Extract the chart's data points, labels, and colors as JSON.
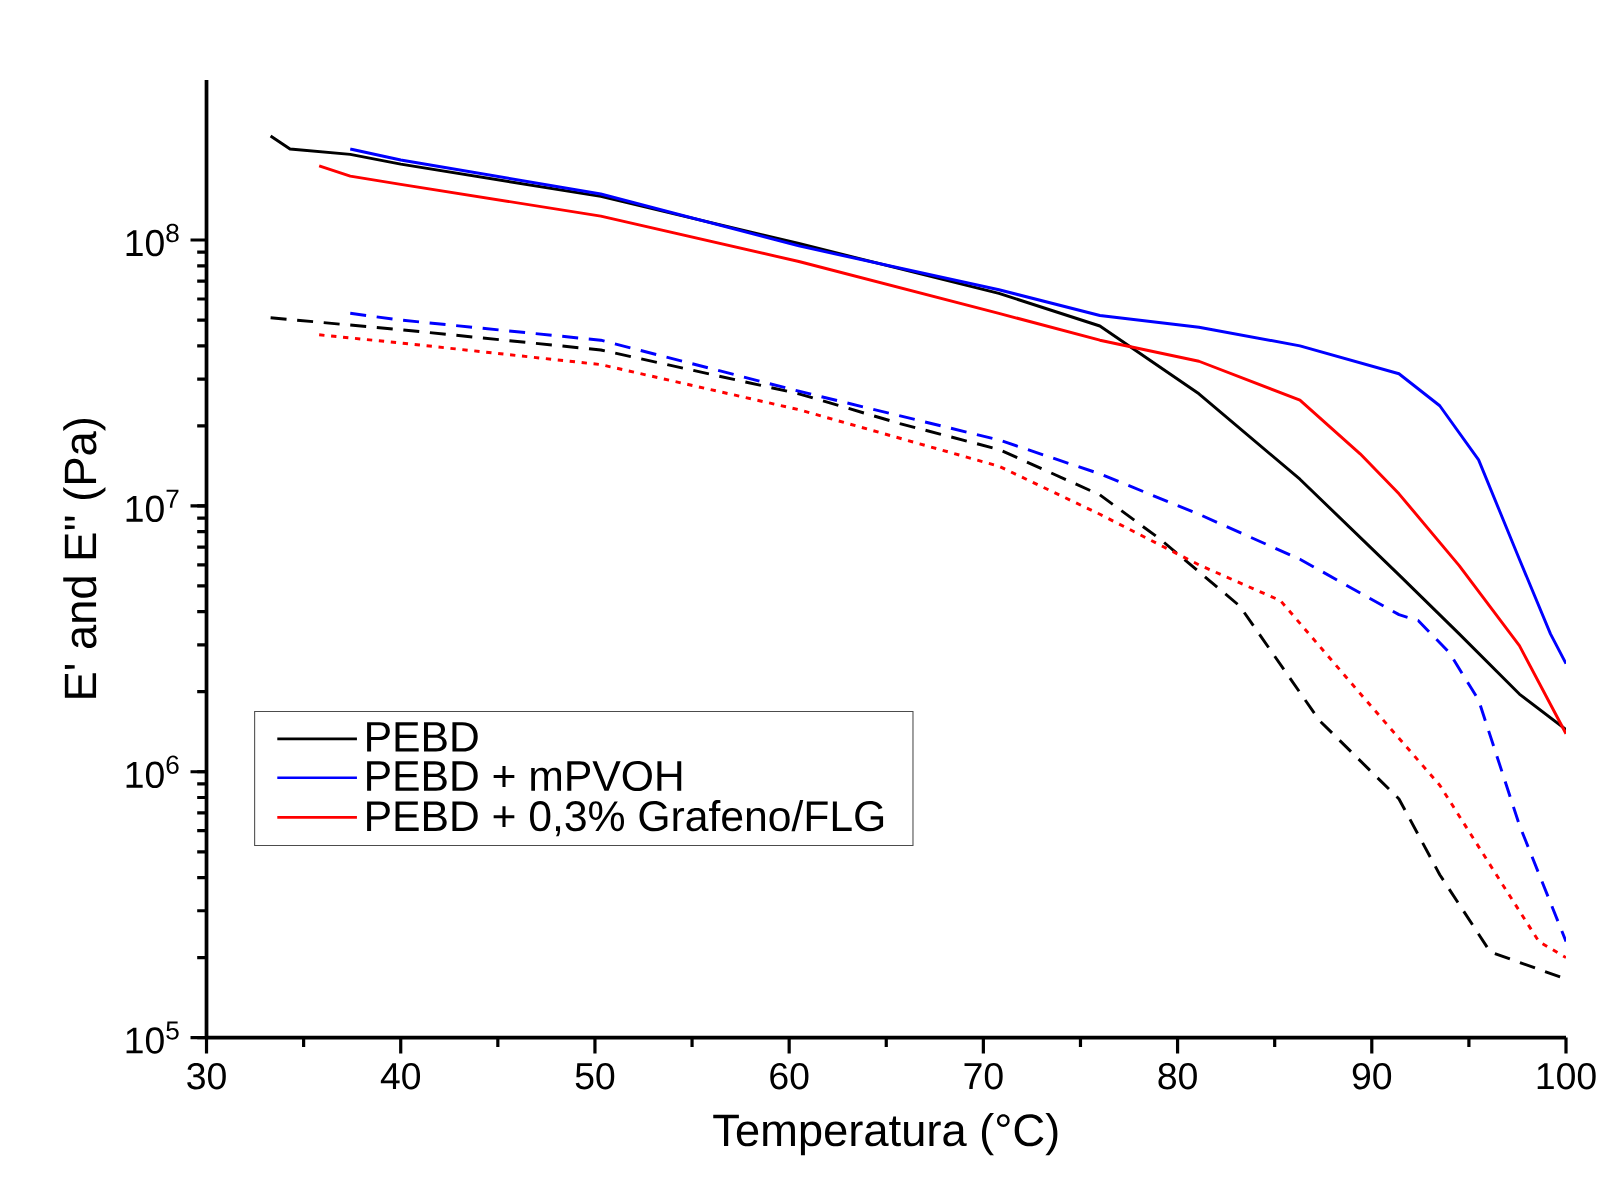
{
  "chart_data": {
    "type": "line",
    "xlabel": "Temperatura (°C)",
    "ylabel": "E' and E'' (Pa)",
    "log": "y",
    "xlim": [
      30,
      100
    ],
    "xticks": [
      30,
      40,
      50,
      60,
      70,
      80,
      90,
      100
    ],
    "ylim": [
      100000,
      400000000
    ],
    "yticks": [
      {
        "value": 100000,
        "label": "10$^{5}$"
      },
      {
        "value": 1000000,
        "label": "10$^{6}$"
      },
      {
        "value": 10000000,
        "label": "10$^{7}$"
      },
      {
        "value": 100000000,
        "label": "10$^{8}$"
      }
    ],
    "legend": "bottom left",
    "series": [
      {
        "name": "PEBD",
        "color": "#000000",
        "line_style": "solid",
        "x": [
          33.3,
          34.3,
          37.4,
          40,
          50.3,
          60.5,
          70.8,
          76,
          81.1,
          86.3,
          91.4,
          94.5,
          97.6,
          100
        ],
        "values": [
          246000000,
          220000000,
          210000000,
          193000000,
          146000000,
          97000000,
          63000000,
          47500000,
          26400000,
          12600000,
          5500000,
          3300000,
          1960000,
          1440000
        ]
      },
      {
        "name": "PEBD + mPVOH",
        "color": "#0000ff",
        "line_style": "solid",
        "x": [
          37.4,
          40,
          50.3,
          60.5,
          70.8,
          76,
          81.1,
          86.3,
          91.4,
          93.5,
          95.5,
          97.6,
          99.2,
          100
        ],
        "values": [
          220000000,
          200000000,
          149000000,
          95000000,
          65000000,
          52000000,
          47000000,
          40000000,
          31400000,
          23800000,
          14900000,
          6300000,
          3300000,
          2550000
        ]
      },
      {
        "name": "PEBD + 0,3% Grafeno/FLG",
        "color": "#ff0000",
        "line_style": "solid",
        "x": [
          35.8,
          37.4,
          40,
          50.3,
          60.5,
          70.8,
          76,
          81.1,
          86.3,
          89.4,
          91.4,
          94.5,
          97.6,
          100
        ],
        "values": [
          190000000,
          174000000,
          162000000,
          123000000,
          83000000,
          53000000,
          42000000,
          35000000,
          25000000,
          15700000,
          11100000,
          5960000,
          2980000,
          1390000
        ]
      },
      {
        "color": "#000000",
        "line_style": "dashed",
        "x": [
          33.3,
          40,
          50.3,
          60.5,
          65.7,
          70.8,
          76,
          79.1,
          83.2,
          87.3,
          91.4,
          93.5,
          96.1,
          100
        ],
        "values": [
          51000000,
          46000000,
          38600000,
          26400000,
          20400000,
          16300000,
          11000000,
          7500000,
          4200000,
          1560000,
          790000,
          410000,
          210000,
          166000
        ]
      },
      {
        "color": "#0000ff",
        "line_style": "dashed",
        "x": [
          37.4,
          40,
          50.3,
          60.5,
          70.8,
          76,
          81.1,
          86.3,
          91.4,
          92.4,
          94,
          95.5,
          97.6,
          100
        ],
        "values": [
          53000000,
          50000000,
          42000000,
          27000000,
          17700000,
          13200000,
          9300000,
          6300000,
          3900000,
          3700000,
          2800000,
          1860000,
          630000,
          230000
        ]
      },
      {
        "color": "#ff0000",
        "line_style": "dotted",
        "x": [
          35.8,
          40,
          50.3,
          60.5,
          70.8,
          76,
          81.1,
          85.3,
          89.4,
          93.5,
          96.6,
          98.6,
          100
        ],
        "values": [
          44000000,
          41000000,
          34000000,
          23000000,
          14100000,
          9300000,
          6000000,
          4400000,
          1970000,
          890000,
          390000,
          230000,
          200000
        ]
      }
    ]
  }
}
